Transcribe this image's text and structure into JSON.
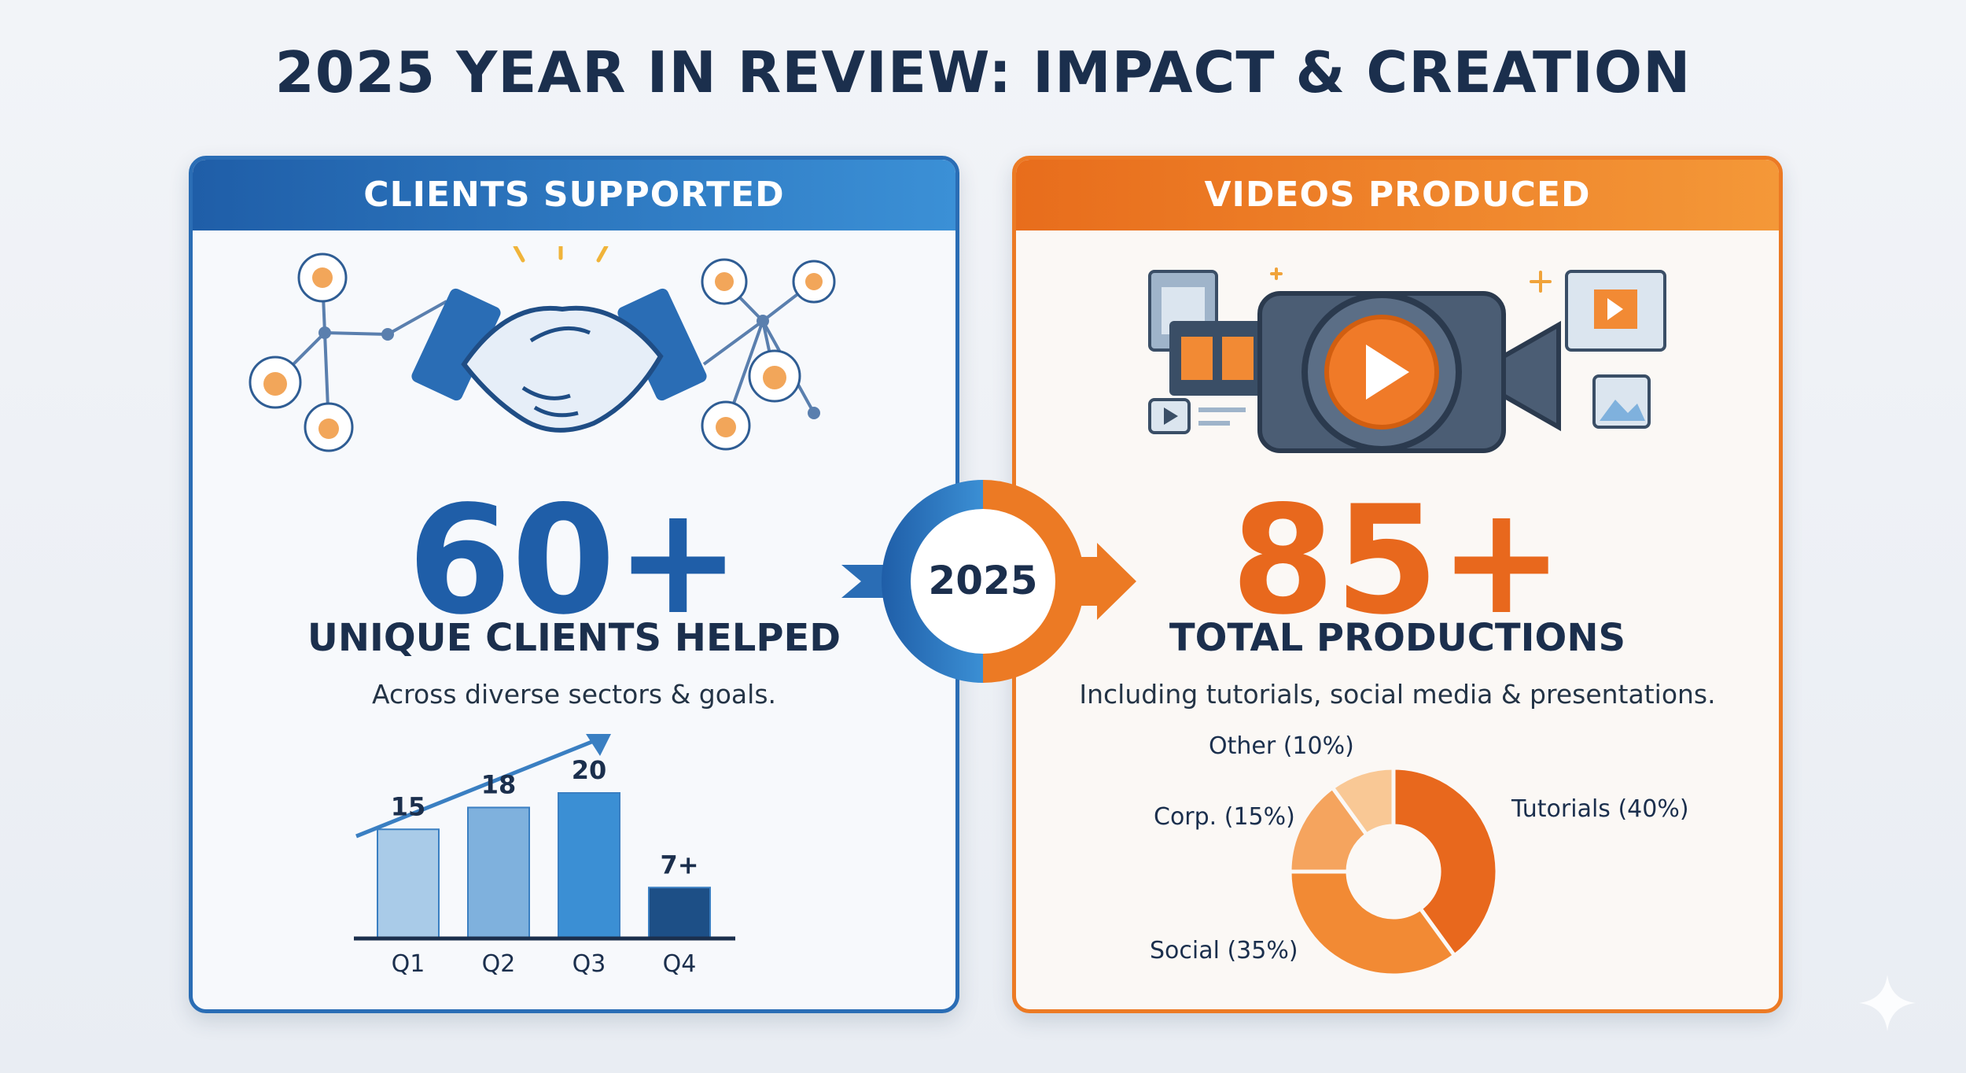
{
  "title": "2025 YEAR IN REVIEW: IMPACT & CREATION",
  "hub_year": "2025",
  "colors": {
    "blue_dark": "#1f5ea8",
    "blue_mid": "#3b8fd4",
    "orange_dark": "#e8681d",
    "orange_light": "#f5b57a",
    "navy": "#1b2f4d"
  },
  "left_panel": {
    "header": "CLIENTS SUPPORTED",
    "icon": "handshake-network-icon",
    "metric": "60+",
    "metric_label": "UNIQUE CLIENTS HELPED",
    "caption": "Across diverse sectors & goals."
  },
  "right_panel": {
    "header": "VIDEOS PRODUCED",
    "icon": "video-camera-icon",
    "metric": "85+",
    "metric_label": "TOTAL PRODUCTIONS",
    "caption": "Including tutorials, social media & presentations."
  },
  "chart_data": [
    {
      "type": "bar",
      "title": "",
      "categories": [
        "Q1",
        "Q2",
        "Q3",
        "Q4"
      ],
      "values": [
        15,
        18,
        20,
        7
      ],
      "value_labels": [
        "15",
        "18",
        "20",
        "7+"
      ],
      "colors": [
        "#a9cbe8",
        "#7fb1dd",
        "#3b8fd4",
        "#1d4f86"
      ],
      "trend_arrow": "up",
      "ylim": [
        0,
        22
      ],
      "xlabel": "",
      "ylabel": ""
    },
    {
      "type": "pie",
      "title": "",
      "labels": [
        "Tutorials (40%)",
        "Social (35%)",
        "Corp. (15%)",
        "Other (10%)"
      ],
      "values": [
        40,
        35,
        15,
        10
      ],
      "colors": [
        "#e8681d",
        "#f28a34",
        "#f5a45e",
        "#f9c895"
      ],
      "donut": true
    }
  ]
}
